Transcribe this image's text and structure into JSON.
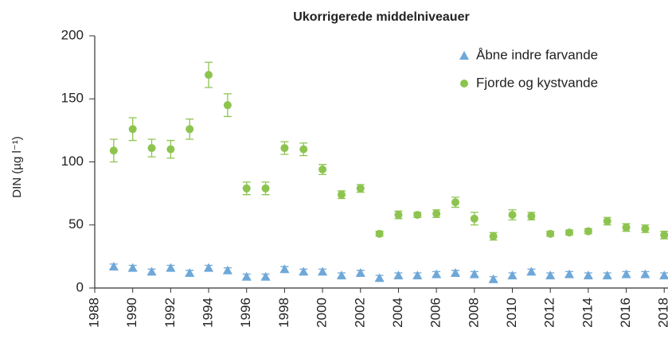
{
  "chart_data": {
    "type": "scatter",
    "title": "Ukorrigerede middelniveauer",
    "y_label": "DIN (µg l⁻¹)",
    "x": [
      1989,
      1990,
      1991,
      1992,
      1993,
      1994,
      1995,
      1996,
      1997,
      1998,
      1999,
      2000,
      2001,
      2002,
      2003,
      2004,
      2005,
      2006,
      2007,
      2008,
      2009,
      2010,
      2011,
      2012,
      2013,
      2014,
      2015,
      2016,
      2017,
      2018
    ],
    "series": [
      {
        "name": "Åbne indre farvande",
        "color": "#6fa8d8",
        "marker": "triangle",
        "values": [
          17,
          16,
          13,
          16,
          12,
          16,
          14,
          9,
          9,
          15,
          13,
          13,
          10,
          12,
          8,
          10,
          10,
          11,
          12,
          11,
          7,
          10,
          13,
          10,
          11,
          10,
          10,
          11,
          11,
          10
        ],
        "errors": [
          2,
          2,
          2,
          2,
          2,
          2,
          2,
          2,
          2,
          2,
          2,
          2,
          2,
          2,
          2,
          2,
          2,
          2,
          2,
          2,
          2,
          2,
          2,
          2,
          2,
          2,
          2,
          2,
          2,
          2
        ]
      },
      {
        "name": "Fjorde og kystvande",
        "color": "#8dc44f",
        "marker": "circle",
        "values": [
          109,
          126,
          111,
          110,
          126,
          169,
          145,
          79,
          79,
          111,
          110,
          94,
          74,
          79,
          43,
          58,
          58,
          59,
          68,
          55,
          41,
          58,
          57,
          43,
          44,
          45,
          53,
          48,
          47,
          42
        ],
        "errors": [
          9,
          9,
          7,
          7,
          8,
          10,
          9,
          5,
          5,
          5,
          5,
          4,
          3,
          3,
          2,
          3,
          2,
          3,
          4,
          5,
          3,
          4,
          3,
          2,
          2,
          2,
          3,
          3,
          3,
          3
        ]
      }
    ],
    "xlim": [
      1988,
      2018.2
    ],
    "xticks": [
      1988,
      1990,
      1992,
      1994,
      1996,
      1998,
      2000,
      2002,
      2004,
      2006,
      2008,
      2010,
      2012,
      2014,
      2016,
      2018
    ],
    "ylim": [
      0,
      200
    ],
    "yticks": [
      0,
      50,
      100,
      150,
      200
    ],
    "legend": "upper right"
  }
}
